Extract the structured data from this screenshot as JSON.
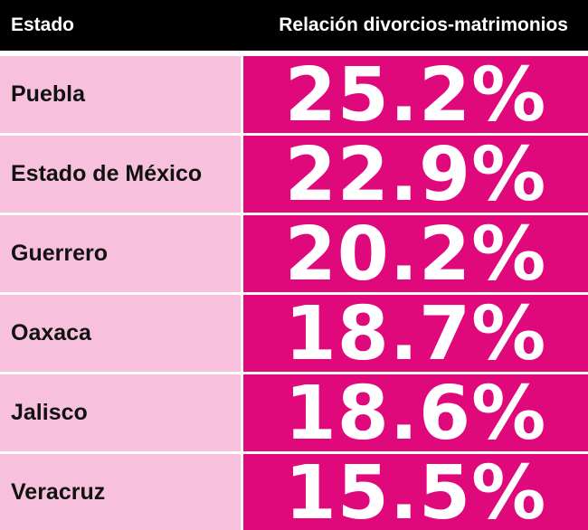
{
  "chart_data": {
    "type": "table",
    "columns": [
      "Estado",
      "Relación divorcios-matrimonios"
    ],
    "rows": [
      {
        "state": "Puebla",
        "value": "25.2%"
      },
      {
        "state": "Estado de México",
        "value": "22.9%"
      },
      {
        "state": "Guerrero",
        "value": "20.2%"
      },
      {
        "state": "Oaxaca",
        "value": "18.7%"
      },
      {
        "state": "Jalisco",
        "value": "18.6%"
      },
      {
        "state": "Veracruz",
        "value": "15.5%"
      }
    ]
  },
  "colors": {
    "header_bg": "#000000",
    "state_bg": "#f7c1dd",
    "value_bg": "#e0097b",
    "value_text": "#ffffff"
  }
}
